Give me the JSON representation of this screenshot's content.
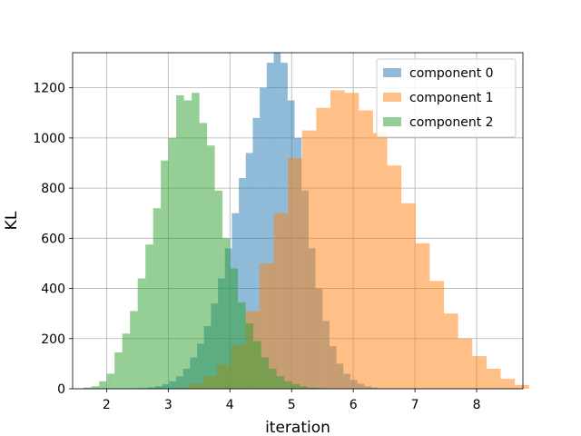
{
  "chart_data": {
    "type": "histogram",
    "xlabel": "iteration",
    "ylabel": "KL",
    "xlim": [
      1.45,
      8.75
    ],
    "ylim": [
      0,
      1340
    ],
    "xticks": [
      2,
      3,
      4,
      5,
      6,
      7,
      8
    ],
    "yticks": [
      0,
      200,
      400,
      600,
      800,
      1000,
      1200
    ],
    "grid": true,
    "legend_position": "top-right",
    "alpha": 0.5,
    "series": [
      {
        "name": "component 0",
        "color": "#1f77b4",
        "bin_start": 2.45,
        "bin_width": 0.113,
        "values": [
          2,
          3,
          6,
          10,
          18,
          30,
          50,
          80,
          125,
          180,
          250,
          340,
          440,
          560,
          700,
          840,
          940,
          1080,
          1200,
          1300,
          1370,
          1300,
          1150,
          1000,
          790,
          560,
          400,
          270,
          170,
          100,
          60,
          35,
          20,
          10,
          5
        ]
      },
      {
        "name": "component 1",
        "color": "#ff7f0e",
        "bin_start": 3.1,
        "bin_width": 0.23,
        "values": [
          3,
          20,
          50,
          95,
          175,
          310,
          500,
          700,
          920,
          1030,
          1120,
          1190,
          1180,
          1110,
          1020,
          890,
          740,
          580,
          430,
          300,
          200,
          130,
          80,
          40,
          15
        ]
      },
      {
        "name": "component 2",
        "color": "#2ca02c",
        "bin_start": 1.63,
        "bin_width": 0.125,
        "values": [
          5,
          10,
          30,
          60,
          145,
          220,
          310,
          440,
          575,
          720,
          910,
          1000,
          1170,
          1150,
          1180,
          1060,
          970,
          790,
          600,
          480,
          345,
          260,
          190,
          125,
          80,
          50,
          30,
          18,
          10,
          5,
          3
        ]
      }
    ]
  }
}
